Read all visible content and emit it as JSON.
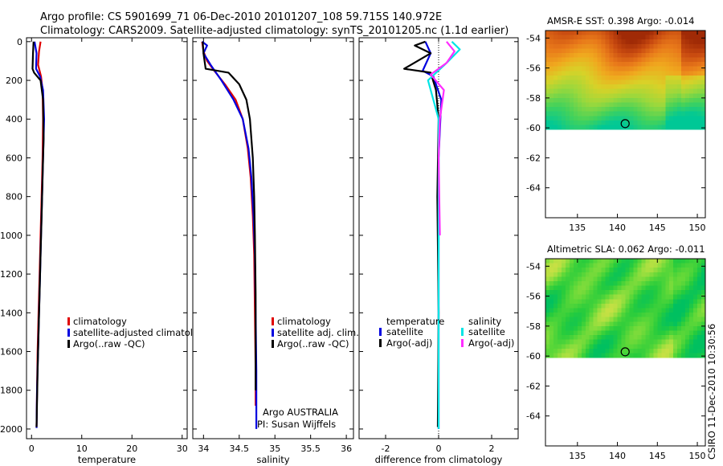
{
  "title": {
    "line1": "Argo profile: CS 5901699_71 06-Dec-2010 20101207_108 59.715S 140.972E",
    "line2": "Climatology: CARS2009. Satellite-adjusted climatology: synTS_20101205.nc (1.1d earlier)"
  },
  "stamp": "CSIRO 11-Dec-2010 10:30:56",
  "colors": {
    "red": "#e00000",
    "blue": "#0000e0",
    "black": "#000000",
    "cyan": "#00e5e5",
    "magenta": "#ff2cff"
  },
  "chart_data": [
    {
      "type": "line",
      "id": "temperature",
      "xlabel": "temperature",
      "ylabel": "",
      "xlim": [
        -1,
        31
      ],
      "ylim": [
        2050,
        -20
      ],
      "xticks": [
        0,
        10,
        20,
        30
      ],
      "xtick_labels": [
        "0",
        "10",
        "20",
        "30"
      ],
      "yticks": [
        0,
        200,
        400,
        600,
        800,
        1000,
        1200,
        1400,
        1600,
        1800,
        2000
      ],
      "ytick_labels": [
        "0",
        "200",
        "400",
        "600",
        "800",
        "1000",
        "1200",
        "1400",
        "1600",
        "1800",
        "2000"
      ],
      "series": [
        {
          "name": "climatology",
          "color": "#e00000",
          "x": [
            1.8,
            1.5,
            1.3,
            1.9,
            2.2,
            2.3,
            2.2,
            2.0,
            1.8,
            1.6,
            1.4,
            1.2,
            1.1,
            1.0
          ],
          "y": [
            0,
            50,
            120,
            180,
            250,
            400,
            600,
            800,
            1000,
            1200,
            1400,
            1600,
            1800,
            1990
          ]
        },
        {
          "name": "satellite-adjusted climatology",
          "color": "#0000e0",
          "x": [
            0.6,
            1.0,
            0.9,
            1.7,
            2.3,
            2.5,
            2.3,
            2.1,
            1.9,
            1.7,
            1.5,
            1.3,
            1.1,
            1.0
          ],
          "y": [
            0,
            60,
            140,
            180,
            250,
            400,
            600,
            800,
            1000,
            1200,
            1400,
            1600,
            1800,
            1995
          ]
        },
        {
          "name": "Argo(..raw -QC)",
          "color": "#000000",
          "x": [
            0.4,
            0.3,
            0.2,
            0.5,
            1.8,
            2.3,
            2.4,
            2.2,
            2.0,
            1.8,
            1.6,
            1.4,
            1.2,
            1.0
          ],
          "y": [
            0,
            60,
            140,
            160,
            200,
            300,
            500,
            700,
            900,
            1100,
            1300,
            1500,
            1700,
            1990
          ]
        }
      ],
      "legend": [
        "climatology",
        "satellite-adjusted climatology",
        "Argo(..raw -QC)"
      ]
    },
    {
      "type": "line",
      "id": "salinity",
      "xlabel": "salinity",
      "xlim": [
        33.85,
        36.1
      ],
      "ylim": [
        2050,
        -20
      ],
      "xticks": [
        34,
        34.5,
        35,
        35.5,
        36
      ],
      "xtick_labels": [
        "34",
        "34.5",
        "35",
        "35.5",
        "36"
      ],
      "series": [
        {
          "name": "climatology",
          "color": "#e00000",
          "x": [
            33.98,
            34.0,
            34.05,
            34.15,
            34.3,
            34.45,
            34.55,
            34.62,
            34.66,
            34.69,
            34.71,
            34.72,
            34.73,
            34.73
          ],
          "y": [
            0,
            50,
            100,
            150,
            220,
            300,
            400,
            550,
            700,
            900,
            1100,
            1400,
            1700,
            1880
          ]
        },
        {
          "name": "satellite adj. clim.",
          "color": "#0000e0",
          "x": [
            33.98,
            34.05,
            34.0,
            34.1,
            34.25,
            34.42,
            34.55,
            34.63,
            34.67,
            34.7,
            34.72,
            34.73,
            34.74,
            34.74
          ],
          "y": [
            0,
            20,
            60,
            120,
            200,
            300,
            400,
            550,
            700,
            900,
            1100,
            1400,
            1700,
            2000
          ]
        },
        {
          "name": "Argo(..raw -QC)",
          "color": "#000000",
          "x": [
            33.99,
            34.0,
            34.03,
            34.35,
            34.5,
            34.6,
            34.65,
            34.69,
            34.71,
            34.72,
            34.73,
            34.73
          ],
          "y": [
            0,
            60,
            140,
            160,
            220,
            300,
            400,
            600,
            800,
            1000,
            1300,
            1800
          ]
        }
      ],
      "legend": [
        "climatology",
        "satellite adj. clim.",
        "Argo(..raw -QC)"
      ],
      "annotations": [
        "Argo AUSTRALIA",
        "PI: Susan Wijffels"
      ]
    },
    {
      "type": "line",
      "id": "difference",
      "xlabel": "difference from climatology",
      "xlim": [
        -3,
        3
      ],
      "ylim": [
        2050,
        -20
      ],
      "xticks": [
        -2,
        0,
        2
      ],
      "xtick_labels": [
        "-2",
        "0",
        "2"
      ],
      "series": [
        {
          "name": "temperature satellite",
          "color": "#0000e0",
          "x": [
            -0.5,
            -0.3,
            -0.6,
            -0.2,
            0.1,
            0.0,
            0.0,
            0.0
          ],
          "y": [
            0,
            60,
            150,
            180,
            300,
            600,
            1200,
            2000
          ]
        },
        {
          "name": "temperature Argo(-adj)",
          "color": "#000000",
          "x": [
            -0.5,
            -0.9,
            -0.3,
            -1.3,
            -0.3,
            -0.1,
            0.0,
            -0.05,
            0.0,
            -0.03
          ],
          "y": [
            0,
            20,
            60,
            140,
            160,
            250,
            400,
            800,
            1400,
            1990
          ]
        },
        {
          "name": "salinity satellite",
          "color": "#00e5e5",
          "x": [
            0.5,
            0.8,
            0.3,
            -0.4,
            0.0,
            0.0,
            0.0
          ],
          "y": [
            0,
            40,
            110,
            200,
            400,
            1000,
            2000
          ]
        },
        {
          "name": "salinity Argo(-adj)",
          "color": "#ff2cff",
          "x": [
            0.3,
            0.6,
            0.3,
            -0.3,
            0.2,
            0.05,
            0.0,
            0.05
          ],
          "y": [
            0,
            50,
            110,
            170,
            250,
            400,
            600,
            1000
          ]
        }
      ],
      "legend_titles": [
        "temperature",
        "salinity"
      ],
      "legend": [
        "satellite",
        "Argo(-adj)",
        "satellite",
        "Argo(-adj)"
      ],
      "annotations": []
    },
    {
      "type": "heatmap",
      "id": "amsr-sst",
      "title": "AMSR-E SST: 0.398  Argo: -0.014",
      "xlim": [
        131,
        151
      ],
      "ylim": [
        -66,
        -53.5
      ],
      "xticks": [
        135,
        140,
        145,
        150
      ],
      "yticks": [
        -54,
        -56,
        -58,
        -60,
        -62,
        -64
      ],
      "xtick_labels": [
        "135",
        "140",
        "145",
        "150"
      ],
      "ytick_labels": [
        "-54",
        "-56",
        "-58",
        "-60",
        "-62",
        "-64"
      ],
      "data_lat_range": [
        -60.1,
        -53.5
      ],
      "marker": {
        "lon": 140.972,
        "lat": -59.715
      },
      "colormap": [
        "#00c896",
        "#44d25a",
        "#9bd83c",
        "#d8d228",
        "#f0a81e",
        "#e8781a",
        "#c84a10",
        "#a02a06"
      ]
    },
    {
      "type": "heatmap",
      "id": "altimetric-sla",
      "title": "Altimetric SLA: 0.062  Argo: -0.011",
      "xlim": [
        131,
        151
      ],
      "ylim": [
        -66,
        -53.5
      ],
      "xticks": [
        135,
        140,
        145,
        150
      ],
      "yticks": [
        -54,
        -56,
        -58,
        -60,
        -62,
        -64
      ],
      "xtick_labels": [
        "135",
        "140",
        "145",
        "150"
      ],
      "ytick_labels": [
        "-54",
        "-56",
        "-58",
        "-60",
        "-62",
        "-64"
      ],
      "data_lat_range": [
        -60.1,
        -53.5
      ],
      "marker": {
        "lon": 140.972,
        "lat": -59.715
      },
      "colormap": [
        "#00c060",
        "#28cc3c",
        "#60d838",
        "#a8e040",
        "#e8e048",
        "#f0b848"
      ]
    }
  ]
}
